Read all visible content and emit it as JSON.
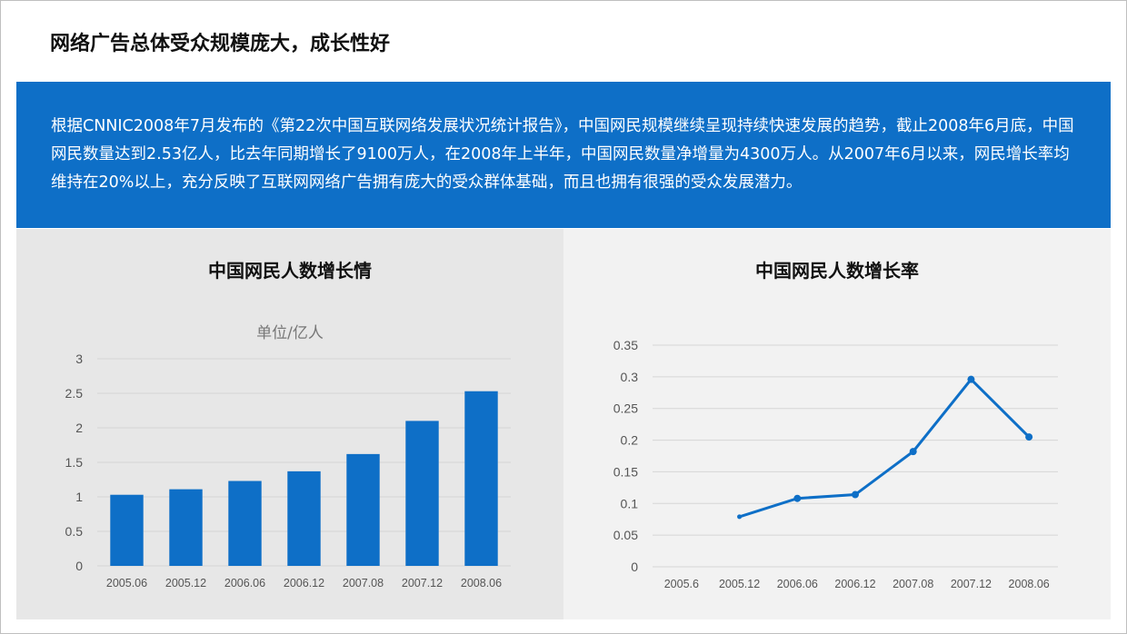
{
  "header": {
    "title": "网络广告总体受众规模庞大，成长性好"
  },
  "banner": {
    "text": "根据CNNIC2008年7月发布的《第22次中国互联网络发展状况统计报告》，中国网民规模继续呈现持续快速发展的趋势，截止2008年6月底，中国网民数量达到2.53亿人，比去年同期增长了9100万人，在2008年上半年，中国网民数量净增量为4300万人。从2007年6月以来，网民增长率均维持在20%以上，充分反映了互联网网络广告拥有庞大的受众群体基础，而且也拥有很强的受众发展潜力。"
  },
  "colors": {
    "accent": "#0e6fc7"
  },
  "chart_data": [
    {
      "type": "bar",
      "title": "中国网民人数增长情",
      "unit_label": "单位/亿人",
      "categories": [
        "2005.06",
        "2005.12",
        "2006.06",
        "2006.12",
        "2007.08",
        "2007.12",
        "2008.06"
      ],
      "values": [
        1.03,
        1.11,
        1.23,
        1.37,
        1.62,
        2.1,
        2.53
      ],
      "ylim": [
        0,
        3
      ],
      "yticks": [
        "0",
        "0.5",
        "1",
        "1.5",
        "2",
        "2.5",
        "3"
      ],
      "grid": true
    },
    {
      "type": "line",
      "title": "中国网民人数增长率",
      "categories": [
        "2005.6",
        "2005.12",
        "2006.06",
        "2006.12",
        "2007.08",
        "2007.12",
        "2008.06"
      ],
      "values": [
        null,
        0.079,
        0.108,
        0.114,
        0.182,
        0.296,
        0.205
      ],
      "ylim": [
        0,
        0.35
      ],
      "yticks": [
        "0",
        "0.05",
        "0.1",
        "0.15",
        "0.2",
        "0.25",
        "0.3",
        "0.35"
      ],
      "grid": true
    }
  ]
}
